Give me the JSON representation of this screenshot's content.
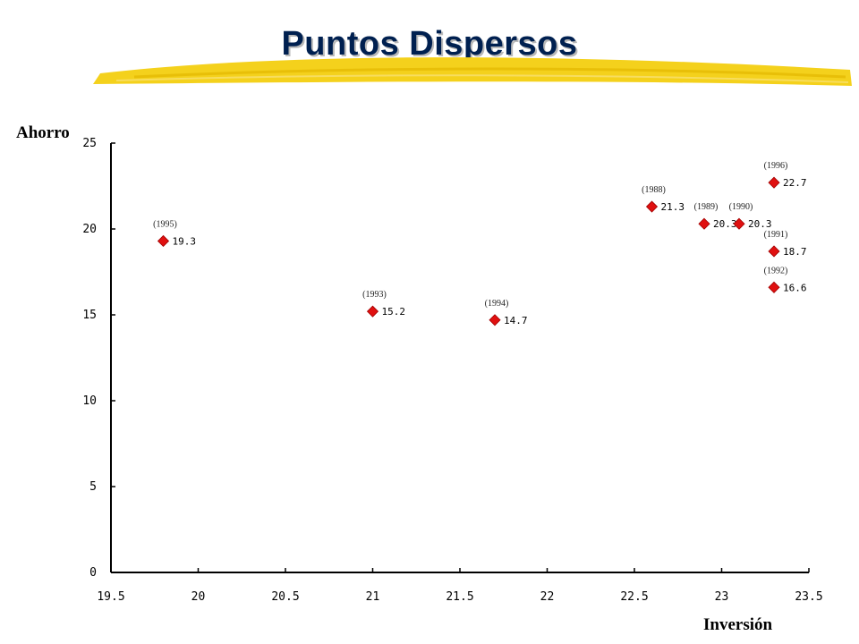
{
  "colors": {
    "title": "#002050",
    "marker": "#e01010",
    "brush": "#f4d11c"
  },
  "chart_data": {
    "type": "scatter",
    "title": "Puntos Dispersos",
    "xlabel": "Inversión",
    "ylabel": "Ahorro",
    "xlim": [
      19.5,
      23.5
    ],
    "ylim": [
      0,
      25
    ],
    "x_ticks": [
      "19.5",
      "20",
      "20.5",
      "21",
      "21.5",
      "22",
      "22.5",
      "23",
      "23.5"
    ],
    "y_ticks": [
      "0",
      "5",
      "10",
      "15",
      "20",
      "25"
    ],
    "grid": false,
    "legend": "none",
    "marker": "diamond",
    "points": [
      {
        "x": 22.6,
        "y": 21.3,
        "label": "21.3",
        "year": "(1988)"
      },
      {
        "x": 22.9,
        "y": 20.3,
        "label": "20.3",
        "year": "(1989)"
      },
      {
        "x": 23.1,
        "y": 20.3,
        "label": "20.3",
        "year": "(1990)"
      },
      {
        "x": 23.3,
        "y": 18.7,
        "label": "18.7",
        "year": "(1991)"
      },
      {
        "x": 23.3,
        "y": 16.6,
        "label": "16.6",
        "year": "(1992)"
      },
      {
        "x": 21.0,
        "y": 15.2,
        "label": "15.2",
        "year": "(1993)"
      },
      {
        "x": 21.7,
        "y": 14.7,
        "label": "14.7",
        "year": "(1994)"
      },
      {
        "x": 19.8,
        "y": 19.3,
        "label": "19.3",
        "year": "(1995)"
      },
      {
        "x": 23.3,
        "y": 22.7,
        "label": "22.7",
        "year": "(1996)"
      }
    ]
  }
}
